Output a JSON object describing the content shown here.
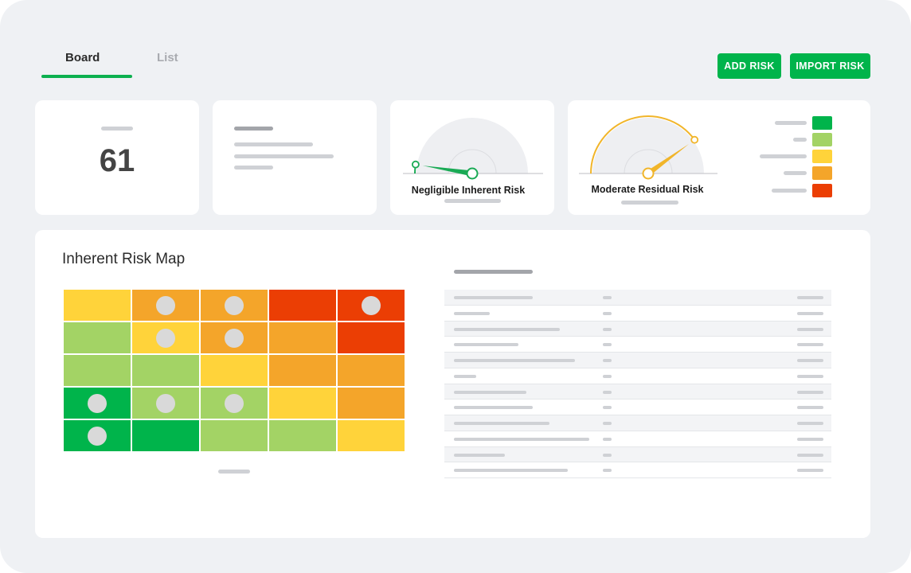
{
  "tabs": {
    "board": "Board",
    "list": "List"
  },
  "buttons": {
    "add_risk": "ADD RISK",
    "import_risk": "IMPORT RISK"
  },
  "summary": {
    "count": "61"
  },
  "gauges": {
    "inherent_label": "Negligible Inherent Risk",
    "residual_label": "Moderate Residual Risk",
    "inherent_level_fraction": 0.05,
    "residual_level_fraction": 0.8
  },
  "colors": {
    "accent": "#00b44b",
    "risk_dark_green": "#00b44b",
    "risk_light_green": "#a3d365",
    "risk_yellow": "#ffd33a",
    "risk_orange": "#f4a52a",
    "risk_red": "#eb3e04",
    "gauge_inherent": "#1aaa55",
    "gauge_residual": "#f1b52a"
  },
  "legend": [
    "risk_dark_green",
    "risk_light_green",
    "risk_yellow",
    "risk_orange",
    "risk_red"
  ],
  "risk_map": {
    "title": "Inherent Risk Map",
    "cells": [
      [
        "risk_yellow",
        "risk_orange",
        "risk_orange",
        "risk_red",
        "risk_red"
      ],
      [
        "risk_light_green",
        "risk_yellow",
        "risk_orange",
        "risk_orange",
        "risk_red"
      ],
      [
        "risk_light_green",
        "risk_light_green",
        "risk_yellow",
        "risk_orange",
        "risk_orange"
      ],
      [
        "risk_dark_green",
        "risk_light_green",
        "risk_light_green",
        "risk_yellow",
        "risk_orange"
      ],
      [
        "risk_dark_green",
        "risk_dark_green",
        "risk_light_green",
        "risk_light_green",
        "risk_yellow"
      ]
    ],
    "markers": [
      [
        false,
        true,
        true,
        false,
        true
      ],
      [
        false,
        true,
        true,
        false,
        false
      ],
      [
        false,
        false,
        false,
        false,
        false
      ],
      [
        true,
        true,
        true,
        false,
        false
      ],
      [
        true,
        false,
        false,
        false,
        false
      ]
    ]
  },
  "risk_table": {
    "row_count": 12
  }
}
